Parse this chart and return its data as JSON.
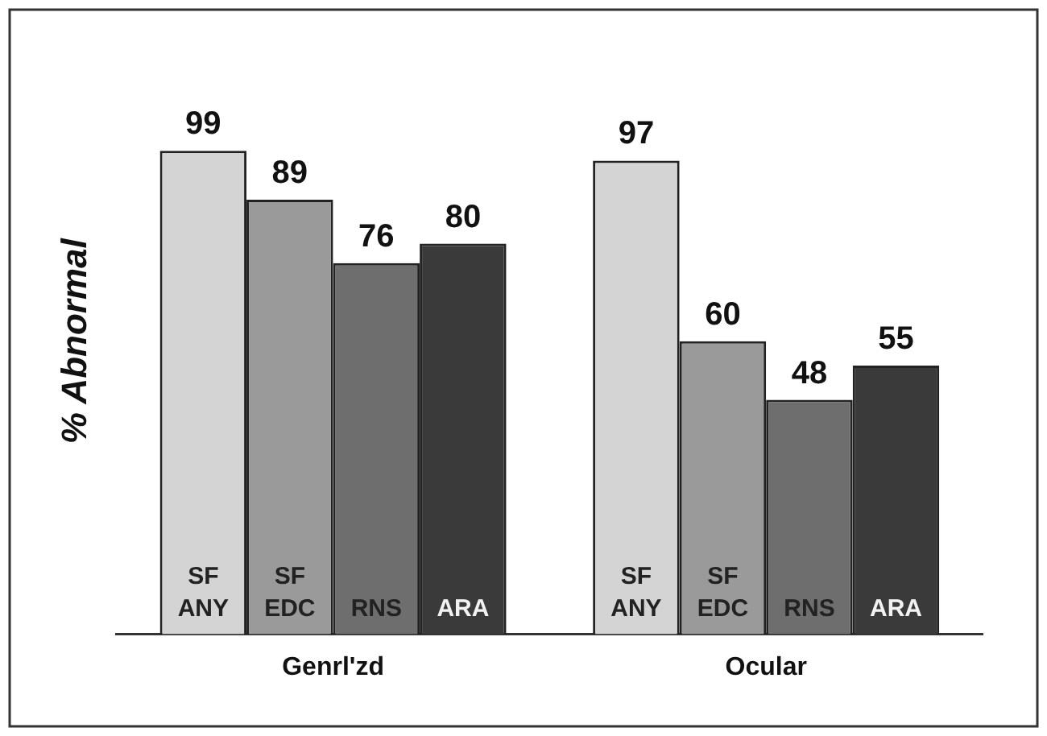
{
  "chart_data": {
    "type": "bar",
    "ylabel": "% Abnormal",
    "categories": [
      "Genrl'zd",
      "Ocular"
    ],
    "series": [
      {
        "name": "SF ANY",
        "color": "#d4d4d4",
        "values": [
          99,
          97
        ]
      },
      {
        "name": "SF EDC",
        "color": "#9a9a9a",
        "values": [
          89,
          60
        ]
      },
      {
        "name": "RNS",
        "color": "#6e6e6e",
        "values": [
          76,
          48
        ]
      },
      {
        "name": "ARA",
        "color": "#3a3a3a",
        "values": [
          80,
          55
        ]
      }
    ],
    "data_labels": true,
    "legend": false,
    "grid": false
  }
}
